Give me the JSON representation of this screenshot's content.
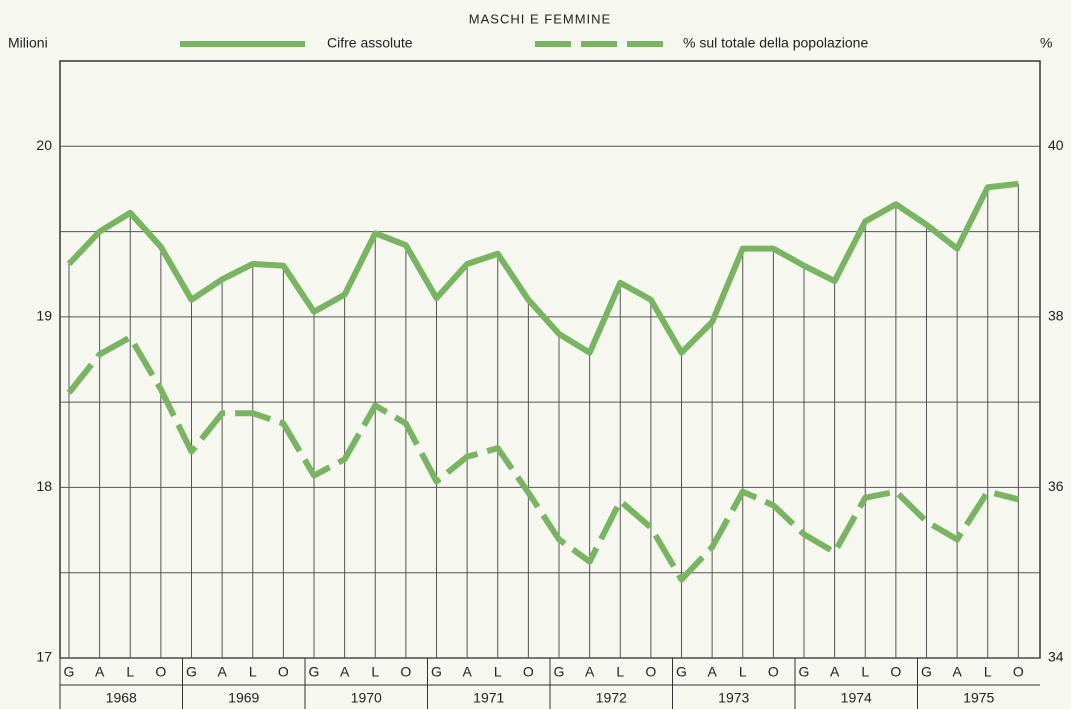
{
  "chart_data": {
    "type": "line",
    "title": "MASCHI E FEMMINE",
    "ylabel": "Milioni",
    "y2label": "%",
    "categories": [
      "G",
      "A",
      "L",
      "O",
      "G",
      "A",
      "L",
      "O",
      "G",
      "A",
      "L",
      "O",
      "G",
      "A",
      "L",
      "O",
      "G",
      "A",
      "L",
      "O",
      "G",
      "A",
      "L",
      "O",
      "G",
      "A",
      "L",
      "O",
      "G",
      "A",
      "L",
      "O"
    ],
    "years": [
      "1968",
      "1969",
      "1970",
      "1971",
      "1972",
      "1973",
      "1974",
      "1975"
    ],
    "series": [
      {
        "name": "Cifre assolute",
        "color": "#79b462",
        "dash": false,
        "values": [
          19.31,
          19.5,
          19.61,
          19.41,
          19.1,
          19.22,
          19.31,
          19.3,
          19.03,
          19.13,
          19.49,
          19.42,
          19.11,
          19.31,
          19.37,
          19.1,
          18.9,
          18.79,
          19.2,
          19.1,
          18.79,
          18.97,
          19.4,
          19.4,
          19.3,
          19.21,
          19.56,
          19.66,
          19.54,
          19.4,
          19.76,
          19.78
        ]
      },
      {
        "name": "% sul totale della popolazione",
        "color": "#79b462",
        "dash": true,
        "axis": "y2",
        "values": [
          37.11,
          37.56,
          37.76,
          37.15,
          36.42,
          36.87,
          36.87,
          36.75,
          36.14,
          36.33,
          36.96,
          36.75,
          36.07,
          36.36,
          36.46,
          35.94,
          35.39,
          35.13,
          35.84,
          35.53,
          34.92,
          35.3,
          35.95,
          35.79,
          35.45,
          35.24,
          35.88,
          35.95,
          35.6,
          35.39,
          35.95,
          35.86
        ]
      }
    ],
    "ylim": [
      17,
      20.5
    ],
    "yticks": [
      17,
      18,
      19,
      20
    ],
    "minor_yticks": [
      17.5,
      18.5,
      19.5
    ],
    "y2lim": [
      34,
      41
    ],
    "y2ticks": [
      34,
      36,
      38,
      40
    ],
    "grid": true
  }
}
